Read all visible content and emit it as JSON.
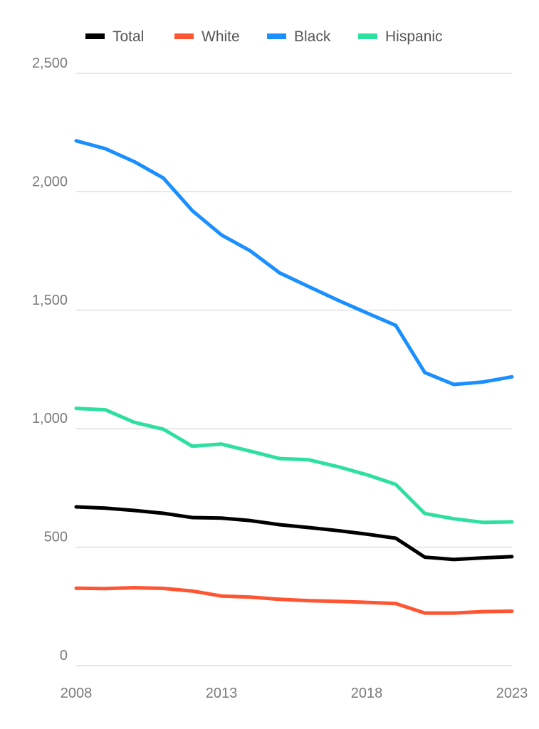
{
  "chart_data": {
    "type": "line",
    "title": "",
    "xlabel": "",
    "ylabel": "",
    "x": [
      2008,
      2009,
      2010,
      2011,
      2012,
      2013,
      2014,
      2015,
      2016,
      2017,
      2018,
      2019,
      2020,
      2021,
      2022,
      2023
    ],
    "x_tick_labels": [
      "2008",
      "2013",
      "2018",
      "2023"
    ],
    "x_ticks": [
      2008,
      2013,
      2018,
      2023
    ],
    "xlim": [
      2008,
      2023
    ],
    "y_ticks": [
      0,
      500,
      1000,
      1500,
      2000,
      2500
    ],
    "y_tick_labels": [
      "0",
      "500",
      "1,000",
      "1,500",
      "2,000",
      "2,500"
    ],
    "ylim": [
      0,
      2500
    ],
    "grid": "horizontal",
    "legend_position": "top",
    "series": [
      {
        "name": "Total",
        "color": "#000000",
        "values": [
          670,
          665,
          655,
          643,
          625,
          623,
          612,
          595,
          583,
          570,
          555,
          538,
          458,
          448,
          455,
          460
        ]
      },
      {
        "name": "White",
        "color": "#ff5533",
        "values": [
          327,
          325,
          329,
          326,
          315,
          294,
          289,
          280,
          274,
          271,
          267,
          262,
          222,
          222,
          228,
          230
        ]
      },
      {
        "name": "Black",
        "color": "#1a8fff",
        "values": [
          2215,
          2182,
          2127,
          2058,
          1920,
          1818,
          1750,
          1658,
          1600,
          1543,
          1489,
          1436,
          1237,
          1187,
          1197,
          1219
        ]
      },
      {
        "name": "Hispanic",
        "color": "#2ee0a0",
        "values": [
          1086,
          1080,
          1027,
          998,
          926,
          935,
          905,
          874,
          869,
          840,
          806,
          765,
          642,
          620,
          605,
          607
        ]
      }
    ]
  }
}
